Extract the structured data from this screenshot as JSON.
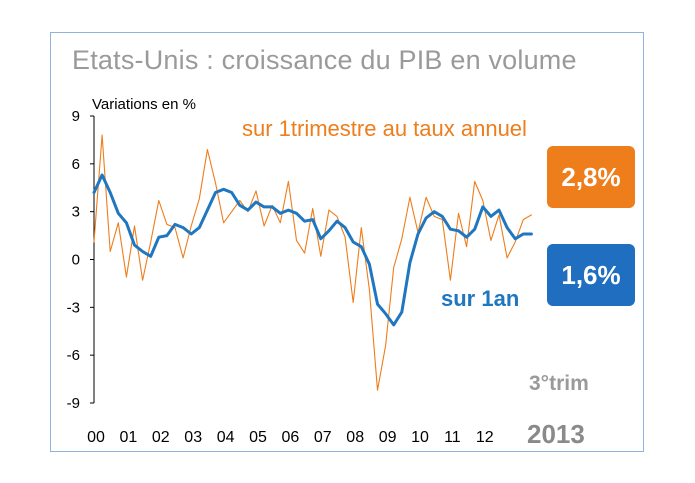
{
  "chart_data": {
    "type": "line",
    "title": "Etats-Unis : croissance du PIB en volume",
    "ylabel": "Variations en %",
    "xlabel": "",
    "ylim": [
      -9,
      9
    ],
    "yticks": [
      "9",
      "6",
      "3",
      "0",
      "-3",
      "-6",
      "-9"
    ],
    "ytick_values": [
      9,
      6,
      3,
      0,
      -3,
      -6,
      -9
    ],
    "xtick_labels": [
      "00",
      "01",
      "02",
      "03",
      "04",
      "05",
      "06",
      "07",
      "08",
      "09",
      "10",
      "11",
      "12"
    ],
    "x_start_year": 2000,
    "grid": false,
    "series": [
      {
        "name": "sur 1trimestre au taux annuel",
        "color": "#ee7d1b",
        "end_label": "2,8%",
        "values": [
          1.1,
          7.8,
          0.5,
          2.3,
          -1.1,
          2.1,
          -1.3,
          1.1,
          3.7,
          2.2,
          2.0,
          0.1,
          2.1,
          3.8,
          6.9,
          4.8,
          2.3,
          3.0,
          3.7,
          3.0,
          4.3,
          2.1,
          3.4,
          2.3,
          4.9,
          1.2,
          0.4,
          3.2,
          0.2,
          3.1,
          2.7,
          1.4,
          -2.7,
          2.0,
          -1.9,
          -8.2,
          -5.4,
          -0.5,
          1.3,
          3.9,
          1.7,
          3.9,
          2.7,
          2.5,
          -1.3,
          2.9,
          0.8,
          4.9,
          3.7,
          1.2,
          2.8,
          0.1,
          1.1,
          2.5,
          2.8
        ]
      },
      {
        "name": "sur 1an",
        "color": "#1f77c1",
        "end_label": "1,6%",
        "values": [
          4.2,
          5.3,
          4.2,
          2.9,
          2.3,
          0.9,
          0.5,
          0.2,
          1.4,
          1.5,
          2.2,
          2.0,
          1.6,
          2.0,
          3.1,
          4.2,
          4.4,
          4.2,
          3.4,
          3.1,
          3.6,
          3.3,
          3.3,
          2.9,
          3.1,
          2.9,
          2.4,
          2.5,
          1.3,
          1.8,
          2.4,
          2.0,
          1.1,
          0.8,
          -0.3,
          -2.8,
          -3.4,
          -4.1,
          -3.3,
          -0.2,
          1.6,
          2.6,
          3.0,
          2.7,
          1.9,
          1.8,
          1.4,
          1.9,
          3.3,
          2.7,
          3.1,
          2.0,
          1.3,
          1.6,
          1.6
        ]
      }
    ],
    "annotations": {
      "period": "3°trim",
      "year": "2013"
    }
  }
}
